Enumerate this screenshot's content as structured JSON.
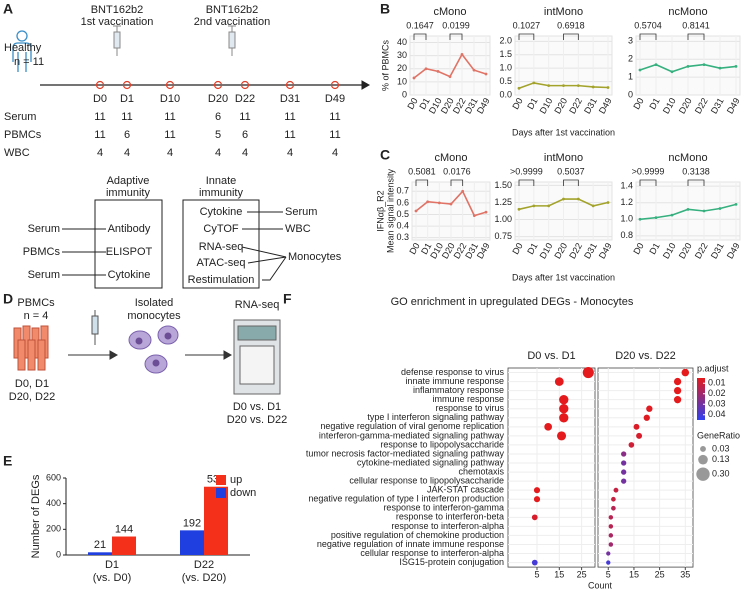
{
  "panel_labels": [
    "A",
    "B",
    "C",
    "D",
    "E",
    "F"
  ],
  "panel_a": {
    "vaccinations": [
      {
        "name": "BNT162b2",
        "label": "1st vaccination"
      },
      {
        "name": "BNT162b2",
        "label": "2nd vaccination"
      }
    ],
    "cohort": [
      "Healthy",
      "n = 11"
    ],
    "timepoints": [
      "D0",
      "D1",
      "D10",
      "D20",
      "D22",
      "D31",
      "D49"
    ],
    "samples": [
      {
        "name": "Serum",
        "counts": [
          11,
          11,
          11,
          6,
          11,
          11,
          11
        ]
      },
      {
        "name": "PBMCs",
        "counts": [
          11,
          6,
          11,
          5,
          6,
          11,
          11
        ]
      },
      {
        "name": "WBC",
        "counts": [
          4,
          4,
          4,
          4,
          4,
          4,
          4
        ]
      }
    ],
    "adaptive": {
      "title": [
        "Adaptive",
        "immunity"
      ],
      "assays": [
        {
          "sample": "Serum",
          "assay": "Antibody"
        },
        {
          "sample": "PBMCs",
          "assay": "ELISPOT"
        },
        {
          "sample": "Serum",
          "assay": "Cytokine"
        }
      ]
    },
    "innate": {
      "title": [
        "Innate",
        "immunity"
      ],
      "assays": [
        "Cytokine",
        "CyTOF",
        "RNA-seq",
        "ATAC-seq",
        "Restimulation"
      ],
      "samples": [
        "Serum",
        "WBC",
        "Monocytes"
      ]
    }
  },
  "panel_d": {
    "source": [
      "PBMCs",
      "n = 4"
    ],
    "days": [
      "D0, D1",
      "D20, D22"
    ],
    "isolated": [
      "Isolated",
      "monocytes"
    ],
    "assay": "RNA-seq",
    "comparisons": [
      "D0 vs. D1",
      "D20 vs. D22"
    ]
  },
  "chart_data": [
    {
      "type": "line",
      "title": "cMono",
      "ylabel": "% of PBMCs",
      "categories": [
        "D0",
        "D1",
        "D10",
        "D20",
        "D22",
        "D31",
        "D49"
      ],
      "values": [
        13,
        20,
        18,
        14,
        31,
        19,
        16
      ],
      "color": "#e07366",
      "ylim": [
        0,
        45
      ],
      "yticks": [
        0,
        10,
        20,
        30,
        40
      ],
      "comparisons": [
        {
          "between": [
            "D0",
            "D1"
          ],
          "label": "0.1647"
        },
        {
          "between": [
            "D20",
            "D22"
          ],
          "label": "0.0199"
        }
      ]
    },
    {
      "type": "line",
      "title": "intMono",
      "xlabel": "Days after 1st vaccination",
      "categories": [
        "D0",
        "D1",
        "D10",
        "D20",
        "D22",
        "D31",
        "D49"
      ],
      "values": [
        0.25,
        0.45,
        0.35,
        0.35,
        0.35,
        0.3,
        0.28
      ],
      "color": "#a3a32c",
      "ylim": [
        0,
        2.2
      ],
      "yticks": [
        {
          "value": 0,
          "label": "0.0"
        },
        0.5,
        {
          "value": 1,
          "label": "1.0"
        },
        1.5,
        {
          "value": 2,
          "label": "2.0"
        }
      ],
      "comparisons": [
        {
          "between": [
            "D0",
            "D1"
          ],
          "label": "0.1027"
        },
        {
          "between": [
            "D20",
            "D22"
          ],
          "label": "0.6918"
        }
      ]
    },
    {
      "type": "line",
      "title": "ncMono",
      "categories": [
        "D0",
        "D1",
        "D10",
        "D20",
        "D22",
        "D31",
        "D49"
      ],
      "values": [
        1.4,
        1.7,
        1.3,
        1.6,
        1.7,
        1.5,
        1.6
      ],
      "color": "#35b07e",
      "ylim": [
        0,
        3.3
      ],
      "yticks": [
        0,
        1,
        2,
        3
      ],
      "comparisons": [
        {
          "between": [
            "D0",
            "D1"
          ],
          "label": "0.5704"
        },
        {
          "between": [
            "D20",
            "D22"
          ],
          "label": "0.8141"
        }
      ]
    },
    {
      "type": "line",
      "title": "cMono",
      "ylabel": "IFNαβ_R2",
      "ylabel_sub": "Mean signal intensity",
      "categories": [
        "D0",
        "D1",
        "D10",
        "D20",
        "D22",
        "D31",
        "D49"
      ],
      "values": [
        0.53,
        0.61,
        0.6,
        0.59,
        0.7,
        0.49,
        0.52
      ],
      "color": "#e07366",
      "ylim": [
        0.28,
        0.78
      ],
      "yticks": [
        0.3,
        0.4,
        0.5,
        0.6,
        0.7
      ],
      "comparisons": [
        {
          "between": [
            "D0",
            "D1"
          ],
          "label": "0.5081"
        },
        {
          "between": [
            "D20",
            "D22"
          ],
          "label": "0.0176"
        }
      ]
    },
    {
      "type": "line",
      "title": "intMono",
      "xlabel": "Days after 1st vaccination",
      "categories": [
        "D0",
        "D1",
        "D10",
        "D20",
        "D22",
        "D31",
        "D49"
      ],
      "values": [
        1.15,
        1.2,
        1.2,
        1.3,
        1.3,
        1.2,
        1.25
      ],
      "color": "#a3a32c",
      "ylim": [
        0.7,
        1.55
      ],
      "yticks": [
        0.75,
        {
          "value": 1,
          "label": "1.00"
        },
        1.25,
        {
          "value": 1.5,
          "label": "1.50"
        }
      ],
      "comparisons": [
        {
          "between": [
            "D0",
            "D1"
          ],
          "label": ">0.9999"
        },
        {
          "between": [
            "D20",
            "D22"
          ],
          "label": "0.5037"
        }
      ]
    },
    {
      "type": "line",
      "title": "ncMono",
      "categories": [
        "D0",
        "D1",
        "D10",
        "D20",
        "D22",
        "D31",
        "D49"
      ],
      "values": [
        1.0,
        1.02,
        1.05,
        1.12,
        1.1,
        1.13,
        1.18
      ],
      "color": "#35b07e",
      "ylim": [
        0.75,
        1.45
      ],
      "yticks": [
        0.8,
        {
          "value": 1,
          "label": "1.0"
        },
        1.2,
        1.4
      ],
      "comparisons": [
        {
          "between": [
            "D0",
            "D1"
          ],
          "label": ">0.9999"
        },
        {
          "between": [
            "D20",
            "D22"
          ],
          "label": "0.3138"
        }
      ]
    },
    {
      "type": "bar",
      "ylabel": "Number of DEGs",
      "categories": [
        "D1",
        "D22"
      ],
      "category_notes": [
        "(vs. D0)",
        "(vs. D20)"
      ],
      "series": [
        {
          "name": "down",
          "color": "#1f3fe0",
          "values": [
            21,
            192
          ]
        },
        {
          "name": "up",
          "color": "#f5301a",
          "values": [
            144,
            532
          ]
        }
      ],
      "ylim": [
        0,
        600
      ],
      "yticks": [
        0,
        200,
        400,
        600
      ],
      "legend": "top-right"
    },
    {
      "type": "dot",
      "title": "GO enrichment in upregulated DEGs - Monocytes",
      "xlabel": "Count",
      "terms": [
        "defense response to virus",
        "innate immune response",
        "inflammatory response",
        "immune response",
        "response to virus",
        "type I interferon signaling pathway",
        "negative regulation of viral genome replication",
        "interferon-gamma-mediated signaling pathway",
        "response to lipopolysaccharide",
        "tumor necrosis factor-mediated signaling pathway",
        "cytokine-mediated signaling pathway",
        "chemotaxis",
        "cellular response to lipopolysaccharide",
        "JAK-STAT cascade",
        "negative regulation of type I interferon production",
        "response to interferon-gamma",
        "response to interferon-beta",
        "response to interferon-alpha",
        "positive regulation of chemokine production",
        "negative regulation of innate immune response",
        "cellular response to interferon-alpha",
        "ISG15-protein conjugation"
      ],
      "facets": [
        {
          "title": "D0 vs. D1",
          "xlim": [
            -8,
            31
          ],
          "xticks": [
            5,
            15,
            25
          ],
          "counts": [
            28,
            15,
            null,
            17,
            17,
            17,
            10,
            16,
            null,
            null,
            null,
            null,
            null,
            5,
            5,
            null,
            4,
            null,
            null,
            null,
            null,
            4
          ],
          "padj": [
            0.005,
            0.005,
            null,
            0.005,
            0.005,
            0.005,
            0.005,
            0.005,
            null,
            null,
            null,
            null,
            null,
            0.005,
            0.005,
            null,
            0.008,
            null,
            null,
            null,
            null,
            0.04
          ],
          "gene_ratio": [
            0.19,
            0.1,
            null,
            0.12,
            0.12,
            0.12,
            0.07,
            0.11,
            null,
            null,
            null,
            null,
            null,
            0.035,
            0.035,
            null,
            0.028,
            null,
            null,
            null,
            null,
            0.028
          ]
        },
        {
          "title": "D20 vs. D22",
          "xlim": [
            1,
            38
          ],
          "xticks": [
            5,
            15,
            25,
            35
          ],
          "counts": [
            35,
            32,
            32,
            32,
            21,
            20,
            16,
            17,
            14,
            11,
            11,
            11,
            11,
            8,
            7,
            7,
            6,
            6,
            6,
            6,
            5,
            5
          ],
          "padj": [
            0.005,
            0.005,
            0.005,
            0.005,
            0.006,
            0.006,
            0.007,
            0.008,
            0.01,
            0.025,
            0.03,
            0.03,
            0.03,
            0.012,
            0.012,
            0.015,
            0.015,
            0.015,
            0.018,
            0.02,
            0.03,
            0.04
          ],
          "gene_ratio": [
            0.066,
            0.06,
            0.06,
            0.06,
            0.039,
            0.038,
            0.03,
            0.032,
            0.026,
            0.021,
            0.021,
            0.021,
            0.021,
            0.015,
            0.013,
            0.013,
            0.011,
            0.011,
            0.011,
            0.011,
            0.009,
            0.009
          ]
        }
      ],
      "color_legend": {
        "title": "p.adjust",
        "lim": [
          0.005,
          0.045
        ],
        "ticks": [
          0.01,
          0.02,
          0.03,
          0.04
        ],
        "colors": [
          "#e41a1c",
          "#3040f0"
        ]
      },
      "size_legend": {
        "title": "GeneRatio",
        "ticks": [
          0.03,
          0.13,
          {
            "value": 0.3,
            "label": "0.30"
          }
        ]
      }
    }
  ]
}
